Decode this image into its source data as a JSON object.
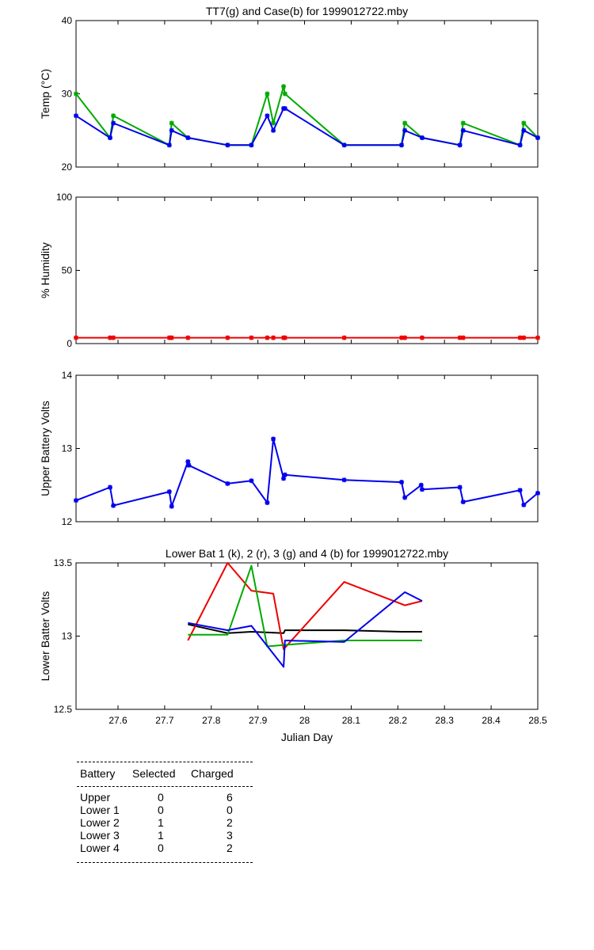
{
  "chart_data": [
    {
      "type": "line",
      "title": "TT7(g) and Case(b) for 1999012722.mby",
      "ylabel": "Temp  (°C)",
      "xlabel": "",
      "xlim": [
        27.51,
        28.5
      ],
      "ylim": [
        20,
        40
      ],
      "yticks": [
        20,
        30,
        40
      ],
      "show_xticklabels": false,
      "series": [
        {
          "color": "#00aa00",
          "x": [
            27.51,
            27.583,
            27.59,
            27.71,
            27.715,
            27.75,
            27.835,
            27.886,
            27.92,
            27.933,
            27.955,
            27.958,
            28.085,
            28.208,
            28.215,
            28.252,
            28.333,
            28.34,
            28.462,
            28.47,
            28.5
          ],
          "y": [
            30,
            24,
            27,
            23,
            26,
            24,
            23,
            23,
            30,
            26,
            31,
            30,
            23,
            23,
            26,
            24,
            23,
            26,
            23,
            26,
            24
          ]
        },
        {
          "color": "#0000ee",
          "x": [
            27.51,
            27.583,
            27.59,
            27.71,
            27.715,
            27.75,
            27.835,
            27.886,
            27.92,
            27.933,
            27.955,
            27.958,
            28.085,
            28.208,
            28.215,
            28.252,
            28.333,
            28.34,
            28.462,
            28.47,
            28.5
          ],
          "y": [
            27,
            24,
            26,
            23,
            25,
            24,
            23,
            23,
            27,
            25,
            28,
            28,
            23,
            23,
            25,
            24,
            23,
            25,
            23,
            25,
            24
          ]
        }
      ]
    },
    {
      "type": "line",
      "title": "",
      "ylabel": "% Humidity",
      "xlabel": "",
      "xlim": [
        27.51,
        28.5
      ],
      "ylim": [
        0,
        100
      ],
      "yticks": [
        0,
        50,
        100
      ],
      "show_xticklabels": false,
      "series": [
        {
          "color": "#ee0000",
          "x": [
            27.51,
            27.583,
            27.59,
            27.71,
            27.715,
            27.75,
            27.835,
            27.886,
            27.92,
            27.933,
            27.955,
            27.958,
            28.085,
            28.208,
            28.215,
            28.252,
            28.333,
            28.34,
            28.462,
            28.47,
            28.5
          ],
          "y": [
            4,
            4,
            4,
            4,
            4,
            4,
            4,
            4,
            4,
            4,
            4,
            4,
            4,
            4,
            4,
            4,
            4,
            4,
            4,
            4,
            4
          ]
        }
      ]
    },
    {
      "type": "line",
      "title": "",
      "ylabel": "Upper Battery Volts",
      "xlabel": "",
      "xlim": [
        27.51,
        28.5
      ],
      "ylim": [
        12,
        14
      ],
      "yticks": [
        12,
        13,
        14
      ],
      "show_xticklabels": false,
      "series": [
        {
          "color": "#0000ee",
          "x": [
            27.51,
            27.583,
            27.59,
            27.71,
            27.715,
            27.75,
            27.752,
            27.835,
            27.886,
            27.92,
            27.933,
            27.955,
            27.958,
            28.085,
            28.208,
            28.215,
            28.25,
            28.252,
            28.333,
            28.34,
            28.462,
            28.47,
            28.5
          ],
          "y": [
            12.29,
            12.47,
            12.22,
            12.41,
            12.21,
            12.82,
            12.77,
            12.52,
            12.56,
            12.26,
            13.13,
            12.59,
            12.64,
            12.57,
            12.54,
            12.33,
            12.5,
            12.44,
            12.47,
            12.27,
            12.43,
            12.23,
            12.39
          ]
        }
      ]
    },
    {
      "type": "line",
      "title": "Lower Bat 1 (k), 2 (r), 3 (g) and 4 (b) for 1999012722.mby",
      "ylabel": "Lower Batter Volts",
      "xlabel": "Julian Day",
      "xlim": [
        27.51,
        28.5
      ],
      "ylim": [
        12.5,
        13.5
      ],
      "yticks": [
        12.5,
        13,
        13.5
      ],
      "show_xticklabels": true,
      "xticks": [
        27.6,
        27.7,
        27.8,
        27.9,
        28,
        28.1,
        28.2,
        28.3,
        28.4,
        28.5
      ],
      "xticklabels": [
        "27.6",
        "27.7",
        "27.8",
        "27.9",
        "28",
        "28.1",
        "28.2",
        "28.3",
        "28.4",
        "28.5"
      ],
      "series": [
        {
          "color": "#000000",
          "x": [
            27.75,
            27.835,
            27.886,
            27.955,
            27.958,
            28.085,
            28.208,
            28.252
          ],
          "y": [
            13.08,
            13.02,
            13.03,
            13.02,
            13.04,
            13.04,
            13.03,
            13.03
          ]
        },
        {
          "color": "#ee0000",
          "x": [
            27.75,
            27.835,
            27.886,
            27.933,
            27.955,
            28.085,
            28.215,
            28.252
          ],
          "y": [
            12.97,
            13.5,
            13.31,
            13.29,
            12.91,
            13.37,
            13.21,
            13.24
          ]
        },
        {
          "color": "#00aa00",
          "x": [
            27.75,
            27.835,
            27.886,
            27.92,
            27.958,
            28.085,
            28.252
          ],
          "y": [
            13.01,
            13.01,
            13.48,
            12.93,
            12.94,
            12.97,
            12.97
          ]
        },
        {
          "color": "#0000ee",
          "x": [
            27.75,
            27.835,
            27.886,
            27.955,
            27.958,
            28.085,
            28.215,
            28.252
          ],
          "y": [
            13.09,
            13.04,
            13.07,
            12.79,
            12.97,
            12.96,
            13.3,
            13.24
          ]
        }
      ]
    }
  ],
  "table": {
    "headers": [
      "Battery",
      "Selected",
      "Charged"
    ],
    "rows": [
      [
        "Upper",
        "0",
        "6"
      ],
      [
        "Lower 1",
        "0",
        "0"
      ],
      [
        "Lower 2",
        "1",
        "2"
      ],
      [
        "Lower 3",
        "1",
        "3"
      ],
      [
        "Lower 4",
        "0",
        "2"
      ]
    ]
  }
}
